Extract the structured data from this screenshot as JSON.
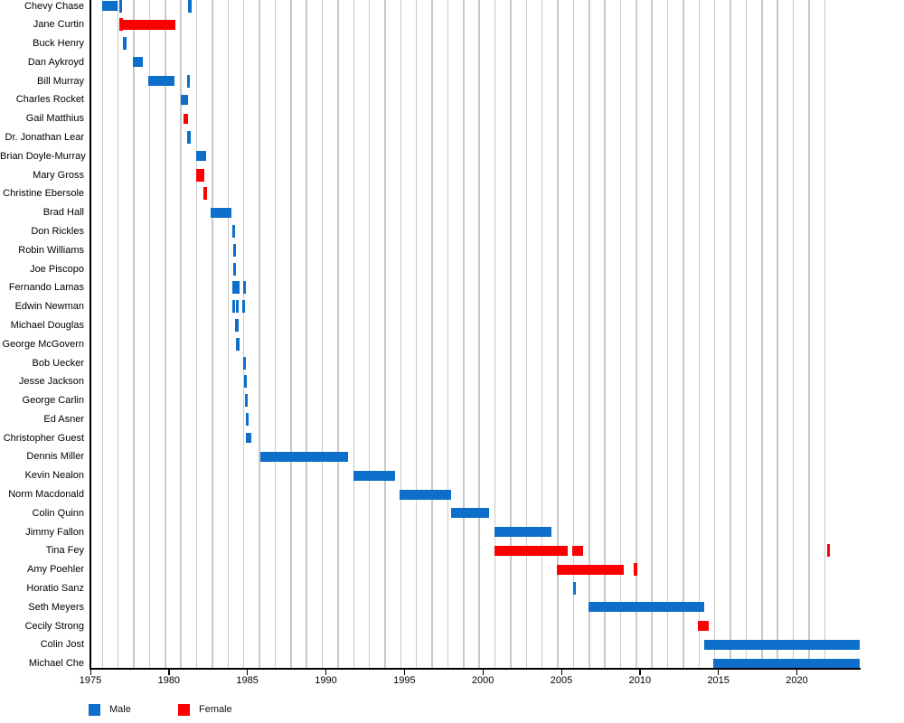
{
  "chart_data": {
    "type": "gantt",
    "title": "",
    "x_axis": {
      "min": 1975,
      "max": 2024,
      "ticks": [
        1975,
        1980,
        1985,
        1990,
        1995,
        2000,
        2005,
        2010,
        2015,
        2020
      ],
      "gridline_seasons": {
        "first": 1975.77,
        "last": 2021.77,
        "step": 1
      }
    },
    "legend": [
      {
        "label": "Male",
        "color": "#0d6fc9"
      },
      {
        "label": "Female",
        "color": "#fa0000"
      }
    ],
    "rows": [
      {
        "name": "Chevy Chase",
        "category": "Male",
        "segments": [
          [
            1975.77,
            1976.7
          ],
          [
            1976.83,
            1976.94
          ],
          [
            1981.22,
            1981.33
          ]
        ]
      },
      {
        "name": "Jane Curtin",
        "category": "Female",
        "segments": [
          [
            1976.86,
            1976.98
          ],
          [
            1977.05,
            1980.4
          ]
        ]
      },
      {
        "name": "Buck Henry",
        "category": "Male",
        "segments": [
          [
            1977.1,
            1977.21
          ]
        ]
      },
      {
        "name": "Dan Aykroyd",
        "category": "Male",
        "segments": [
          [
            1977.69,
            1978.36
          ]
        ]
      },
      {
        "name": "Bill Murray",
        "category": "Male",
        "segments": [
          [
            1978.68,
            1980.37
          ],
          [
            1981.15,
            1981.26
          ]
        ]
      },
      {
        "name": "Charles Rocket",
        "category": "Male",
        "segments": [
          [
            1980.76,
            1981.24
          ]
        ]
      },
      {
        "name": "Gail Matthius",
        "category": "Female",
        "segments": [
          [
            1980.92,
            1981.2
          ]
        ]
      },
      {
        "name": "Dr. Jonathan Lear",
        "category": "Male",
        "segments": [
          [
            1981.17,
            1981.28
          ]
        ]
      },
      {
        "name": "Brian Doyle-Murray",
        "category": "Male",
        "segments": [
          [
            1981.72,
            1982.39
          ]
        ]
      },
      {
        "name": "Mary Gross",
        "category": "Female",
        "segments": [
          [
            1981.72,
            1981.81
          ],
          [
            1981.88,
            1981.98
          ],
          [
            1982.06,
            1982.16
          ]
        ]
      },
      {
        "name": "Christine Ebersole",
        "category": "Female",
        "segments": [
          [
            1982.2,
            1982.41
          ]
        ]
      },
      {
        "name": "Brad Hall",
        "category": "Male",
        "segments": [
          [
            1982.68,
            1983.98
          ]
        ]
      },
      {
        "name": "Don Rickles",
        "category": "Male",
        "segments": [
          [
            1984.03,
            1984.13
          ]
        ]
      },
      {
        "name": "Robin Williams",
        "category": "Male",
        "segments": [
          [
            1984.07,
            1984.17
          ]
        ]
      },
      {
        "name": "Joe Piscopo",
        "category": "Male",
        "segments": [
          [
            1984.09,
            1984.19
          ]
        ]
      },
      {
        "name": "Fernando Lamas",
        "category": "Male",
        "segments": [
          [
            1984.05,
            1984.13
          ],
          [
            1984.29,
            1984.37
          ],
          [
            1984.71,
            1984.79
          ]
        ]
      },
      {
        "name": "Edwin Newman",
        "category": "Male",
        "segments": [
          [
            1984.03,
            1984.11
          ],
          [
            1984.27,
            1984.35
          ],
          [
            1984.67,
            1984.75
          ]
        ]
      },
      {
        "name": "Michael Douglas",
        "category": "Male",
        "segments": [
          [
            1984.24,
            1984.34
          ]
        ]
      },
      {
        "name": "George McGovern",
        "category": "Male",
        "segments": [
          [
            1984.28,
            1984.38
          ]
        ]
      },
      {
        "name": "Bob Uecker",
        "category": "Male",
        "segments": [
          [
            1984.71,
            1984.81
          ]
        ]
      },
      {
        "name": "Jesse Jackson",
        "category": "Male",
        "segments": [
          [
            1984.77,
            1984.87
          ]
        ]
      },
      {
        "name": "George Carlin",
        "category": "Male",
        "segments": [
          [
            1984.84,
            1984.94
          ]
        ]
      },
      {
        "name": "Ed Asner",
        "category": "Male",
        "segments": [
          [
            1984.88,
            1984.98
          ]
        ]
      },
      {
        "name": "Christopher Guest",
        "category": "Male",
        "segments": [
          [
            1984.9,
            1985.27
          ]
        ]
      },
      {
        "name": "Dennis Miller",
        "category": "Male",
        "segments": [
          [
            1985.84,
            1991.41
          ]
        ]
      },
      {
        "name": "Kevin Nealon",
        "category": "Male",
        "segments": [
          [
            1991.74,
            1994.38
          ]
        ]
      },
      {
        "name": "Norm Macdonald",
        "category": "Male",
        "segments": [
          [
            1994.67,
            1997.99
          ]
        ]
      },
      {
        "name": "Colin Quinn",
        "category": "Male",
        "segments": [
          [
            1997.99,
            2000.39
          ]
        ]
      },
      {
        "name": "Jimmy Fallon",
        "category": "Male",
        "segments": [
          [
            2000.75,
            2004.36
          ]
        ]
      },
      {
        "name": "Tina Fey",
        "category": "Female",
        "segments": [
          [
            2000.75,
            2005.41
          ],
          [
            2005.7,
            2006.37
          ],
          [
            2021.9,
            2022.01
          ]
        ]
      },
      {
        "name": "Amy Poehler",
        "category": "Female",
        "segments": [
          [
            2004.7,
            2008.96
          ],
          [
            2009.62,
            2009.76
          ]
        ]
      },
      {
        "name": "Horatio Sanz",
        "category": "Male",
        "segments": [
          [
            2005.72,
            2005.84
          ]
        ]
      },
      {
        "name": "Seth Meyers",
        "category": "Male",
        "segments": [
          [
            2006.74,
            2014.09
          ]
        ]
      },
      {
        "name": "Cecily Strong",
        "category": "Female",
        "segments": [
          [
            2013.67,
            2014.38
          ]
        ]
      },
      {
        "name": "Colin Jost",
        "category": "Male",
        "segments": [
          [
            2014.09,
            2024.0
          ]
        ]
      },
      {
        "name": "Michael Che",
        "category": "Male",
        "segments": [
          [
            2014.67,
            2024.0
          ]
        ]
      }
    ]
  }
}
